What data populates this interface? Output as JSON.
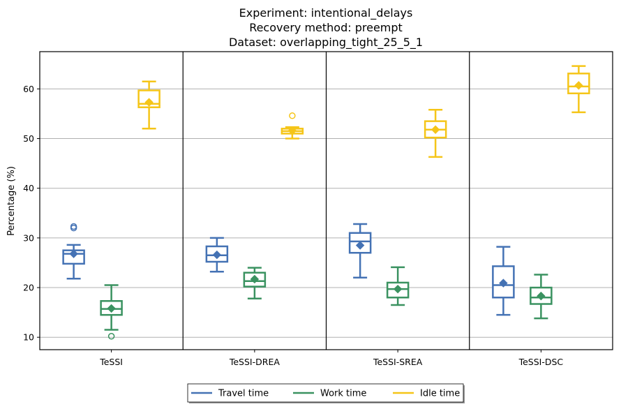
{
  "chart_data": {
    "type": "box",
    "title_lines": [
      "Experiment: intentional_delays",
      "Recovery method: preempt",
      "Dataset: overlapping_tight_25_5_1"
    ],
    "ylabel": "Percentage (%)",
    "xlabel": "",
    "ylim": [
      7.5,
      67.5
    ],
    "yticks": [
      10,
      20,
      30,
      40,
      50,
      60
    ],
    "grid": "horizontal",
    "legend_position": "bottom-center",
    "categories": [
      "TeSSI",
      "TeSSI-DREA",
      "TeSSI-SREA",
      "TeSSI-DSC"
    ],
    "series": [
      {
        "name": "Travel time",
        "color": "#4472b4",
        "boxes": [
          {
            "whisker_low": 21.8,
            "q1": 24.8,
            "median": 26.8,
            "q3": 27.5,
            "whisker_high": 28.6,
            "mean": 26.8,
            "outliers": [
              32.0,
              32.3
            ]
          },
          {
            "whisker_low": 23.2,
            "q1": 25.2,
            "median": 26.5,
            "q3": 28.3,
            "whisker_high": 30.0,
            "mean": 26.6,
            "outliers": []
          },
          {
            "whisker_low": 22.0,
            "q1": 27.0,
            "median": 29.3,
            "q3": 31.0,
            "whisker_high": 32.8,
            "mean": 28.5,
            "outliers": []
          },
          {
            "whisker_low": 14.5,
            "q1": 18.0,
            "median": 20.5,
            "q3": 24.3,
            "whisker_high": 28.2,
            "mean": 20.9,
            "outliers": []
          }
        ]
      },
      {
        "name": "Work time",
        "color": "#3a9260",
        "boxes": [
          {
            "whisker_low": 11.5,
            "q1": 14.5,
            "median": 15.7,
            "q3": 17.3,
            "whisker_high": 20.5,
            "mean": 15.8,
            "outliers": [
              10.2
            ]
          },
          {
            "whisker_low": 17.8,
            "q1": 20.2,
            "median": 21.3,
            "q3": 23.0,
            "whisker_high": 24.0,
            "mean": 21.7,
            "outliers": []
          },
          {
            "whisker_low": 16.5,
            "q1": 18.0,
            "median": 19.7,
            "q3": 21.0,
            "whisker_high": 24.1,
            "mean": 19.7,
            "outliers": []
          },
          {
            "whisker_low": 13.8,
            "q1": 16.7,
            "median": 18.0,
            "q3": 20.0,
            "whisker_high": 22.6,
            "mean": 18.3,
            "outliers": []
          }
        ]
      },
      {
        "name": "Idle time",
        "color": "#f5c518",
        "boxes": [
          {
            "whisker_low": 52.0,
            "q1": 56.3,
            "median": 57.0,
            "q3": 59.7,
            "whisker_high": 61.5,
            "mean": 57.3,
            "outliers": []
          },
          {
            "whisker_low": 50.0,
            "q1": 51.0,
            "median": 51.5,
            "q3": 52.0,
            "whisker_high": 52.3,
            "mean": 51.6,
            "outliers": [
              54.6
            ]
          },
          {
            "whisker_low": 46.3,
            "q1": 50.2,
            "median": 51.8,
            "q3": 53.5,
            "whisker_high": 55.8,
            "mean": 51.8,
            "outliers": []
          },
          {
            "whisker_low": 55.3,
            "q1": 59.1,
            "median": 60.5,
            "q3": 63.1,
            "whisker_high": 64.6,
            "mean": 60.7,
            "outliers": []
          }
        ]
      }
    ]
  }
}
